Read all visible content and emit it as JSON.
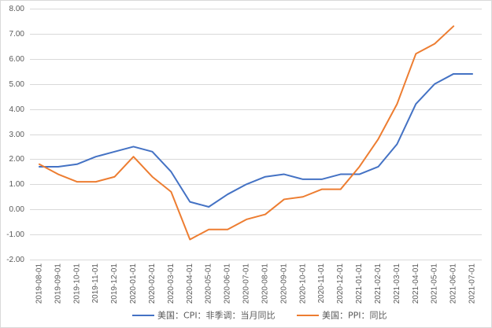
{
  "chart_data": {
    "type": "line",
    "categories": [
      "2019-08-01",
      "2019-09-01",
      "2019-10-01",
      "2019-11-01",
      "2019-12-01",
      "2020-01-01",
      "2020-02-01",
      "2020-03-01",
      "2020-04-01",
      "2020-05-01",
      "2020-06-01",
      "2020-07-01",
      "2020-08-01",
      "2020-09-01",
      "2020-10-01",
      "2020-11-01",
      "2020-12-01",
      "2021-01-01",
      "2021-02-01",
      "2021-03-01",
      "2021-04-01",
      "2021-05-01",
      "2021-06-01",
      "2021-07-01"
    ],
    "ylim": [
      -2,
      8
    ],
    "yticks": [
      "8.00",
      "7.00",
      "6.00",
      "5.00",
      "4.00",
      "3.00",
      "2.00",
      "1.00",
      "0.00",
      "-1.00",
      "-2.00"
    ],
    "grid": true,
    "legend_position": "bottom",
    "series": [
      {
        "name": "美国：CPI：非季调：当月同比",
        "color": "#4472C4",
        "values": [
          1.7,
          1.7,
          1.8,
          2.1,
          2.3,
          2.5,
          2.3,
          1.5,
          0.3,
          0.1,
          0.6,
          1.0,
          1.3,
          1.4,
          1.2,
          1.2,
          1.4,
          1.4,
          1.7,
          2.6,
          4.2,
          5.0,
          5.4,
          5.4
        ]
      },
      {
        "name": "美国：PPI：同比",
        "color": "#ED7D31",
        "values": [
          1.8,
          1.4,
          1.1,
          1.1,
          1.3,
          2.1,
          1.3,
          0.7,
          -1.2,
          -0.8,
          -0.8,
          -0.4,
          -0.2,
          0.4,
          0.5,
          0.8,
          0.8,
          1.7,
          2.8,
          4.2,
          6.2,
          6.6,
          7.3,
          null
        ]
      }
    ]
  }
}
